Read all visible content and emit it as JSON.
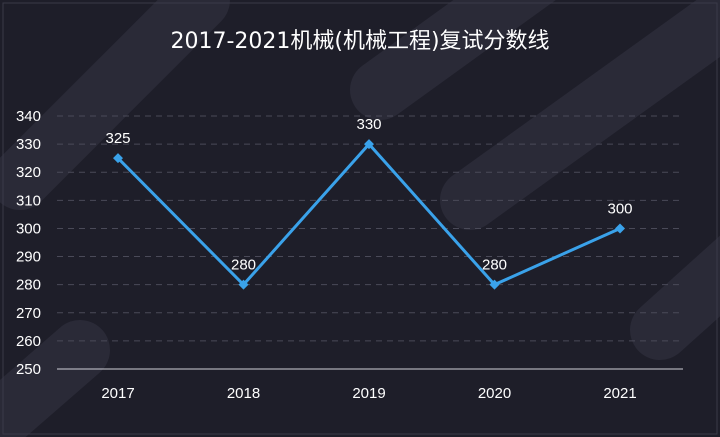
{
  "chart_data": {
    "type": "line",
    "title": "2017-2021机械(机械工程)复试分数线",
    "xlabel": "",
    "ylabel": "",
    "categories": [
      "2017",
      "2018",
      "2019",
      "2020",
      "2021"
    ],
    "series": [
      {
        "values": [
          325,
          280,
          330,
          280,
          300
        ]
      }
    ],
    "ylim": [
      250,
      340
    ],
    "yticks": [
      250,
      260,
      270,
      280,
      290,
      300,
      310,
      320,
      330,
      340
    ],
    "data_labels": [
      "325",
      "280",
      "330",
      "280",
      "300"
    ],
    "grid": true,
    "grid_style": "dashed horizontal",
    "legend": "none"
  },
  "colors": {
    "background": "#1e1e29",
    "line": "#3aa2ea",
    "marker": "#3aa2ea",
    "grid": "#4a4a58",
    "axis": "#d0d0d8",
    "text": "#ffffff",
    "frame": "#3a3a48",
    "decor": "#2a2a37"
  }
}
